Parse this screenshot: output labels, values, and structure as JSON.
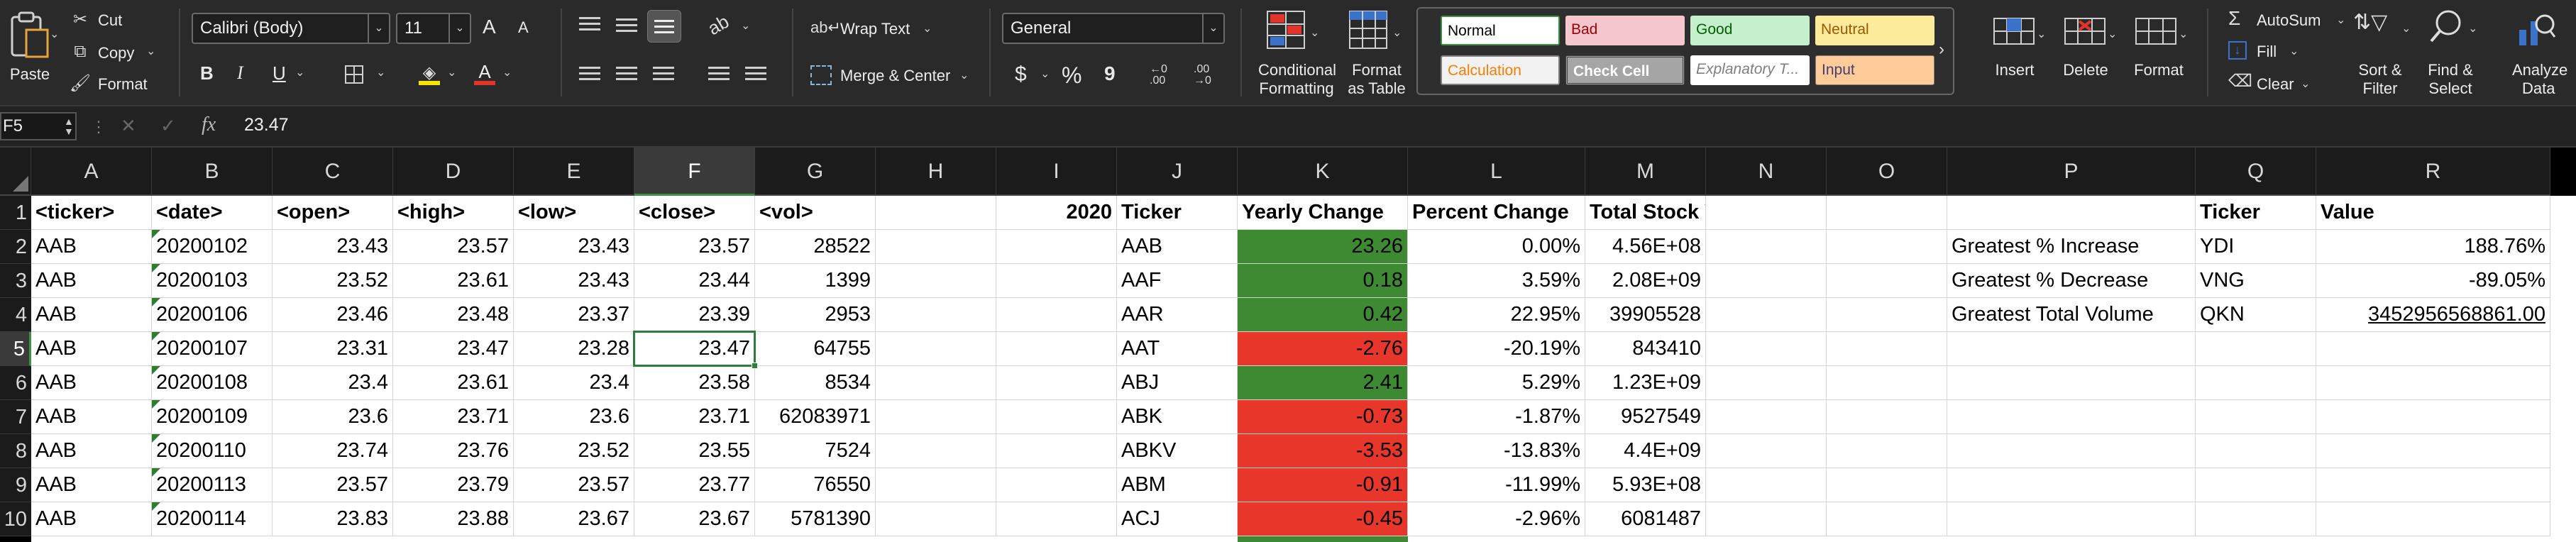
{
  "ribbon": {
    "clipboard": {
      "paste": "Paste",
      "cut": "Cut",
      "copy": "Copy",
      "format": "Format"
    },
    "font": {
      "name": "Calibri (Body)",
      "size": "11",
      "bold": "B",
      "italic": "I",
      "underline": "U",
      "grow": "A",
      "shrink": "A"
    },
    "alignment": {
      "wrap_text": "Wrap Text",
      "merge_center": "Merge & Center"
    },
    "number": {
      "format": "General",
      "currency": "$",
      "percent": "%",
      "comma": "9",
      "inc_decimal": ".00",
      "dec_decimal": ".00"
    },
    "conditional_formatting": [
      "Conditional",
      "Formatting"
    ],
    "format_as_table": [
      "Format",
      "as Table"
    ],
    "styles": [
      {
        "label": "Normal",
        "bg": "#ffffff",
        "fg": "#000000"
      },
      {
        "label": "Bad",
        "bg": "#f7c7ce",
        "fg": "#9c0006"
      },
      {
        "label": "Good",
        "bg": "#c6efce",
        "fg": "#006100"
      },
      {
        "label": "Neutral",
        "bg": "#fdeb9c",
        "fg": "#9c5700"
      },
      {
        "label": "Calculation",
        "bg": "#f2f2f2",
        "fg": "#fa7d00"
      },
      {
        "label": "Check Cell",
        "bg": "#a5a5a5",
        "fg": "#ffffff"
      },
      {
        "label": "Explanatory T...",
        "bg": "#ffffff",
        "fg": "#7f7f7f"
      },
      {
        "label": "Input",
        "bg": "#ffcc99",
        "fg": "#3f3f76"
      }
    ],
    "cells": {
      "insert": "Insert",
      "delete": "Delete",
      "format": "Format"
    },
    "editing": {
      "autosum": "AutoSum",
      "fill": "Fill",
      "clear": "Clear",
      "sort_filter": [
        "Sort &",
        "Filter"
      ],
      "find_select": [
        "Find &",
        "Select"
      ]
    },
    "analyze": [
      "Analyze",
      "Data"
    ]
  },
  "formula_bar": {
    "name_box": "F5",
    "fx": "fx",
    "value": "23.47"
  },
  "columns": [
    "A",
    "B",
    "C",
    "D",
    "E",
    "F",
    "G",
    "H",
    "I",
    "J",
    "K",
    "L",
    "M",
    "N",
    "O",
    "P",
    "Q",
    "R"
  ],
  "selected_column": "F",
  "selected_row": 5,
  "rows": [
    "1",
    "2",
    "3",
    "4",
    "5",
    "6",
    "7",
    "8",
    "9",
    "10"
  ],
  "sheet": {
    "headers": [
      "<ticker>",
      "<date>",
      "<open>",
      "<high>",
      "<low>",
      "<close>",
      "<vol>"
    ],
    "data": [
      [
        "AAB",
        "20200102",
        "23.43",
        "23.57",
        "23.43",
        "23.57",
        "28522"
      ],
      [
        "AAB",
        "20200103",
        "23.52",
        "23.61",
        "23.43",
        "23.44",
        "1399"
      ],
      [
        "AAB",
        "20200106",
        "23.46",
        "23.48",
        "23.37",
        "23.39",
        "2953"
      ],
      [
        "AAB",
        "20200107",
        "23.31",
        "23.47",
        "23.28",
        "23.47",
        "64755"
      ],
      [
        "AAB",
        "20200108",
        "23.4",
        "23.61",
        "23.4",
        "23.58",
        "8534"
      ],
      [
        "AAB",
        "20200109",
        "23.6",
        "23.71",
        "23.6",
        "23.71",
        "62083971"
      ],
      [
        "AAB",
        "20200110",
        "23.74",
        "23.76",
        "23.52",
        "23.55",
        "7524"
      ],
      [
        "AAB",
        "20200113",
        "23.57",
        "23.79",
        "23.57",
        "23.77",
        "76550"
      ],
      [
        "AAB",
        "20200114",
        "23.83",
        "23.88",
        "23.67",
        "23.67",
        "5781390"
      ]
    ],
    "year": "2020",
    "summary_headers": [
      "Ticker",
      "Yearly Change",
      "Percent Change",
      "Total Stock Volume"
    ],
    "summary": [
      {
        "ticker": "AAB",
        "change": "23.26",
        "status": "green",
        "percent": "0.00%",
        "volume": "4.56E+08"
      },
      {
        "ticker": "AAF",
        "change": "0.18",
        "status": "green",
        "percent": "3.59%",
        "volume": "2.08E+09"
      },
      {
        "ticker": "AAR",
        "change": "0.42",
        "status": "green",
        "percent": "22.95%",
        "volume": "39905528"
      },
      {
        "ticker": "AAT",
        "change": "-2.76",
        "status": "red",
        "percent": "-20.19%",
        "volume": "843410"
      },
      {
        "ticker": "ABJ",
        "change": "2.41",
        "status": "green",
        "percent": "5.29%",
        "volume": "1.23E+09"
      },
      {
        "ticker": "ABK",
        "change": "-0.73",
        "status": "red",
        "percent": "-1.87%",
        "volume": "9527549"
      },
      {
        "ticker": "ABKV",
        "change": "-3.53",
        "status": "red",
        "percent": "-13.83%",
        "volume": "4.4E+09"
      },
      {
        "ticker": "ABM",
        "change": "-0.91",
        "status": "red",
        "percent": "-11.99%",
        "volume": "5.93E+08"
      },
      {
        "ticker": "ACJ",
        "change": "-0.45",
        "status": "red",
        "percent": "-2.96%",
        "volume": "6081487"
      }
    ],
    "greatest_headers": [
      "Ticker",
      "Value"
    ],
    "greatest": [
      {
        "label": "Greatest % Increase",
        "ticker": "YDI",
        "value": "188.76%"
      },
      {
        "label": "Greatest % Decrease",
        "ticker": "VNG",
        "value": "-89.05%"
      },
      {
        "label": "Greatest Total Volume",
        "ticker": "QKN",
        "value": "3452956568861.00"
      }
    ]
  },
  "colors": {
    "positive": "#3d8a32",
    "negative": "#e8362b",
    "selection": "#2e7d3b"
  }
}
